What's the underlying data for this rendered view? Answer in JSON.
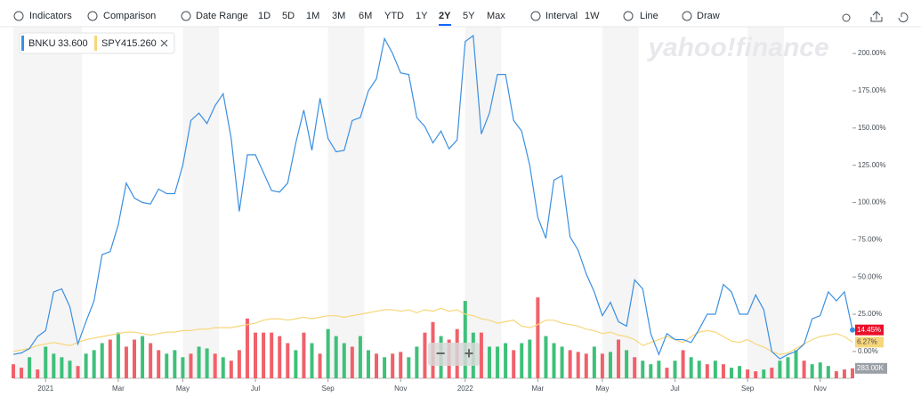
{
  "toolbar": {
    "items": [
      "Indicators",
      "Comparison",
      "Date Range",
      "1D",
      "5D",
      "1M",
      "3M",
      "6M",
      "YTD",
      "1Y",
      "2Y",
      "5Y",
      "Max",
      "Interval",
      "1W",
      "Line",
      "Draw"
    ],
    "active": "2Y"
  },
  "zoom": [
    "−",
    "+"
  ],
  "watermark": "yahoo!finance",
  "volume": {
    "last_label": "283.00K",
    "vlim": [
      0,
      10000
    ],
    "up_color": "#3fc07a",
    "down_color": "#f0616a",
    "dirs": "rrgrggggrgggrgrrgrrgggrggrgrrrrrrrrgrgrgggrggrgrrggrrgrrggrgggrggrgggrrrgrgrgrgggrgrggrgrggrrgrgggrgggrrr",
    "values": [
      400,
      300,
      600,
      250,
      900,
      700,
      600,
      500,
      350,
      700,
      800,
      1000,
      1100,
      1300,
      900,
      1100,
      1200,
      1000,
      800,
      700,
      800,
      600,
      700,
      900,
      850,
      700,
      600,
      500,
      800,
      1700,
      1300,
      1300,
      1300,
      1200,
      1000,
      800,
      1300,
      1000,
      700,
      1400,
      1200,
      1000,
      900,
      1200,
      800,
      700,
      600,
      700,
      750,
      600,
      900,
      1300,
      1600,
      1200,
      1100,
      1400,
      2200,
      1300,
      1300,
      900,
      900,
      1000,
      800,
      1000,
      1100,
      2300,
      1200,
      1000,
      900,
      800,
      750,
      700,
      900,
      700,
      750,
      1100,
      800,
      600,
      500,
      400,
      500,
      300,
      500,
      800,
      600,
      500,
      400,
      500,
      400,
      300,
      350,
      250,
      200,
      250,
      300,
      500,
      600,
      800,
      500,
      400,
      450,
      350,
      200,
      250,
      283
    ]
  },
  "chart_data": {
    "type": "line",
    "xlim": [
      0,
      104
    ],
    "xticks": [
      {
        "value": 4,
        "label": "2021"
      },
      {
        "value": 13,
        "label": "Mar"
      },
      {
        "value": 21,
        "label": "May"
      },
      {
        "value": 30,
        "label": "Jul"
      },
      {
        "value": 39,
        "label": "Sep"
      },
      {
        "value": 48,
        "label": "Nov"
      },
      {
        "value": 56,
        "label": "2022"
      },
      {
        "value": 65,
        "label": "Mar"
      },
      {
        "value": 73,
        "label": "May"
      },
      {
        "value": 82,
        "label": "Jul"
      },
      {
        "value": 91,
        "label": "Sep"
      },
      {
        "value": 100,
        "label": "Nov"
      }
    ],
    "ylim": [
      -18,
      218
    ],
    "yticks": [
      {
        "value": 0,
        "label": "0.00%"
      },
      {
        "value": 25,
        "label": "25.00%"
      },
      {
        "value": 50,
        "label": "50.00%"
      },
      {
        "value": 75,
        "label": "75.00%"
      },
      {
        "value": 100,
        "label": "100.00%"
      },
      {
        "value": 125,
        "label": "125.00%"
      },
      {
        "value": 150,
        "label": "150.00%"
      },
      {
        "value": 175,
        "label": "175.00%"
      },
      {
        "value": 200,
        "label": "200.00%"
      }
    ],
    "series": [
      {
        "name": "BNKU",
        "price": "33.600",
        "color": "#3b8fe0",
        "end_label": "14.45%",
        "values": [
          -2,
          -1,
          2,
          10,
          14,
          40,
          42,
          30,
          5,
          20,
          34,
          65,
          67,
          85,
          113,
          103,
          100,
          99,
          109,
          106,
          106,
          125,
          155,
          160,
          153,
          165,
          173,
          143,
          94,
          132,
          132,
          120,
          108,
          107,
          113,
          140,
          162,
          135,
          170,
          143,
          134,
          135,
          155,
          157,
          175,
          183,
          210,
          200,
          187,
          186,
          157,
          151,
          140,
          148,
          136,
          142,
          208,
          212,
          146,
          160,
          186,
          186,
          155,
          148,
          125,
          90,
          76,
          115,
          118,
          77,
          68,
          52,
          40,
          24,
          33,
          20,
          17,
          48,
          42,
          12,
          -2,
          12,
          8,
          8,
          6,
          15,
          25,
          25,
          45,
          40,
          25,
          25,
          38,
          28,
          0,
          -5,
          -2,
          0,
          5,
          22,
          24,
          40,
          34,
          40,
          14.45
        ]
      },
      {
        "name": "SPY",
        "price": "415.260",
        "color": "#f7d67a",
        "end_label": "6.27%",
        "values": [
          0,
          1,
          2,
          4,
          5,
          6,
          5,
          4,
          6,
          8,
          9,
          10,
          11,
          12,
          13,
          13,
          12,
          11,
          12,
          13,
          13,
          14,
          14,
          15,
          15,
          16,
          16,
          16,
          17,
          18,
          19,
          21,
          22,
          22,
          21,
          22,
          23,
          22,
          23,
          24,
          24,
          23,
          24,
          25,
          26,
          27,
          28,
          28,
          27,
          28,
          26,
          28,
          27,
          29,
          27,
          28,
          25,
          24,
          22,
          21,
          19,
          20,
          21,
          17,
          16,
          18,
          21,
          21,
          19,
          18,
          17,
          15,
          14,
          12,
          13,
          11,
          10,
          8,
          4,
          6,
          8,
          10,
          8,
          6,
          10,
          13,
          14,
          13,
          10,
          7,
          6,
          8,
          5,
          3,
          0,
          -2,
          -1,
          2,
          5,
          8,
          10,
          11,
          12,
          10,
          6.27
        ]
      }
    ]
  }
}
